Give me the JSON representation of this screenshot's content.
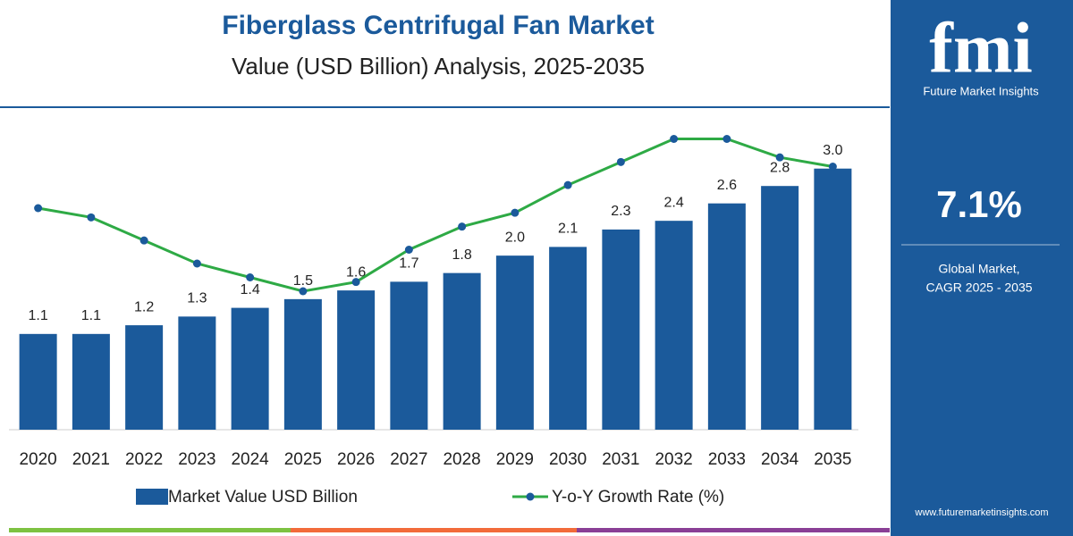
{
  "chart_data": {
    "type": "bar",
    "title": "Fiberglass Centrifugal Fan Market",
    "subtitle": "Value (USD Billion) Analysis, 2025-2035",
    "categories": [
      "2020",
      "2021",
      "2022",
      "2023",
      "2024",
      "2025",
      "2026",
      "2027",
      "2028",
      "2029",
      "2030",
      "2031",
      "2032",
      "2033",
      "2034",
      "2035"
    ],
    "series": [
      {
        "name": "Market Value USD Billion",
        "type": "bar",
        "color": "#1b5a9b",
        "values": [
          1.1,
          1.1,
          1.2,
          1.3,
          1.4,
          1.5,
          1.6,
          1.7,
          1.8,
          2.0,
          2.1,
          2.3,
          2.4,
          2.6,
          2.8,
          3.0
        ],
        "value_labels": [
          "1.1",
          "1.1",
          "1.2",
          "1.3",
          "1.4",
          "1.5",
          "1.6",
          "1.7",
          "1.8",
          "2.0",
          "2.1",
          "2.3",
          "2.4",
          "2.6",
          "2.8",
          "3.0"
        ]
      },
      {
        "name": "Y-o-Y Growth Rate (%)",
        "type": "line",
        "axis": "y2",
        "color": "#2eaa45",
        "marker_color": "#1b5a9b",
        "values": [
          6.2,
          6.0,
          5.5,
          5.0,
          4.7,
          4.4,
          4.6,
          5.3,
          5.8,
          6.1,
          6.7,
          7.2,
          7.7,
          7.7,
          7.3,
          7.1
        ]
      }
    ],
    "ylim": [
      0,
      3.5
    ],
    "y2lim": [
      1.4,
      8.0
    ]
  },
  "panel": {
    "logo": "fmi",
    "brand": "Future Market Insights",
    "cagr": "7.1%",
    "caption_1": "Global Market,",
    "caption_2": "CAGR 2025 - 2035",
    "url": "www.futuremarketinsights.com"
  }
}
